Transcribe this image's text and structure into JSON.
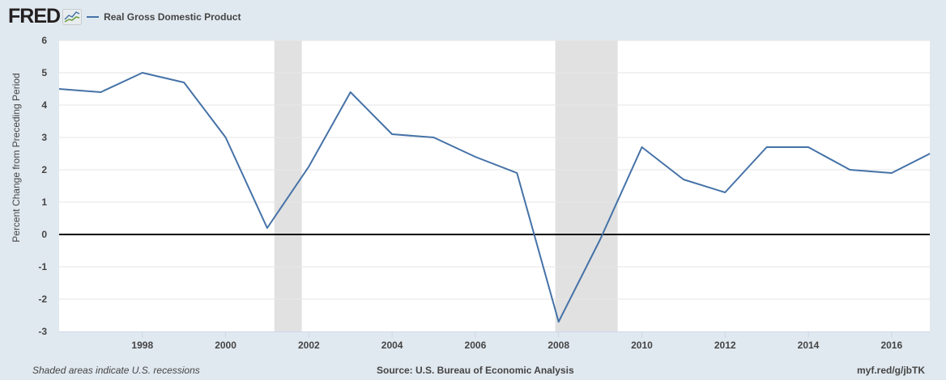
{
  "header": {
    "logo_text": "FRED",
    "series_label": "Real Gross Domestic Product",
    "series_color": "#4572a7"
  },
  "axis": {
    "y_title": "Percent Change from Preceding Period"
  },
  "footer": {
    "note": "Shaded areas indicate U.S. recessions",
    "source": "Source: U.S. Bureau of Economic Analysis",
    "link": "myf.red/g/jbTK"
  },
  "chart_data": {
    "type": "line",
    "title": "Real Gross Domestic Product",
    "xlabel": "",
    "ylabel": "Percent Change from Preceding Period",
    "ylim": [
      -3,
      6
    ],
    "xlim": [
      1996,
      2016.92
    ],
    "yticks": [
      -3,
      -2,
      -1,
      0,
      1,
      2,
      3,
      4,
      5,
      6
    ],
    "xticks": [
      1998,
      2000,
      2002,
      2004,
      2006,
      2008,
      2010,
      2012,
      2014,
      2016
    ],
    "grid": true,
    "legend_position": "top-left",
    "recessions": [
      [
        2001.17,
        2001.83
      ],
      [
        2007.92,
        2009.42
      ]
    ],
    "series": [
      {
        "name": "Real Gross Domestic Product",
        "color": "#4572a7",
        "x": [
          1996,
          1997,
          1998,
          1999,
          2000,
          2001,
          2002,
          2003,
          2004,
          2005,
          2006,
          2007,
          2008,
          2009,
          2010,
          2011,
          2012,
          2013,
          2014,
          2015,
          2016,
          2016.92
        ],
        "values": [
          4.5,
          4.4,
          5.0,
          4.7,
          3.0,
          0.2,
          2.1,
          4.4,
          3.1,
          3.0,
          2.4,
          1.9,
          -2.7,
          -0.15,
          2.7,
          1.7,
          1.3,
          2.7,
          2.7,
          2.0,
          1.9,
          2.5
        ]
      }
    ]
  }
}
